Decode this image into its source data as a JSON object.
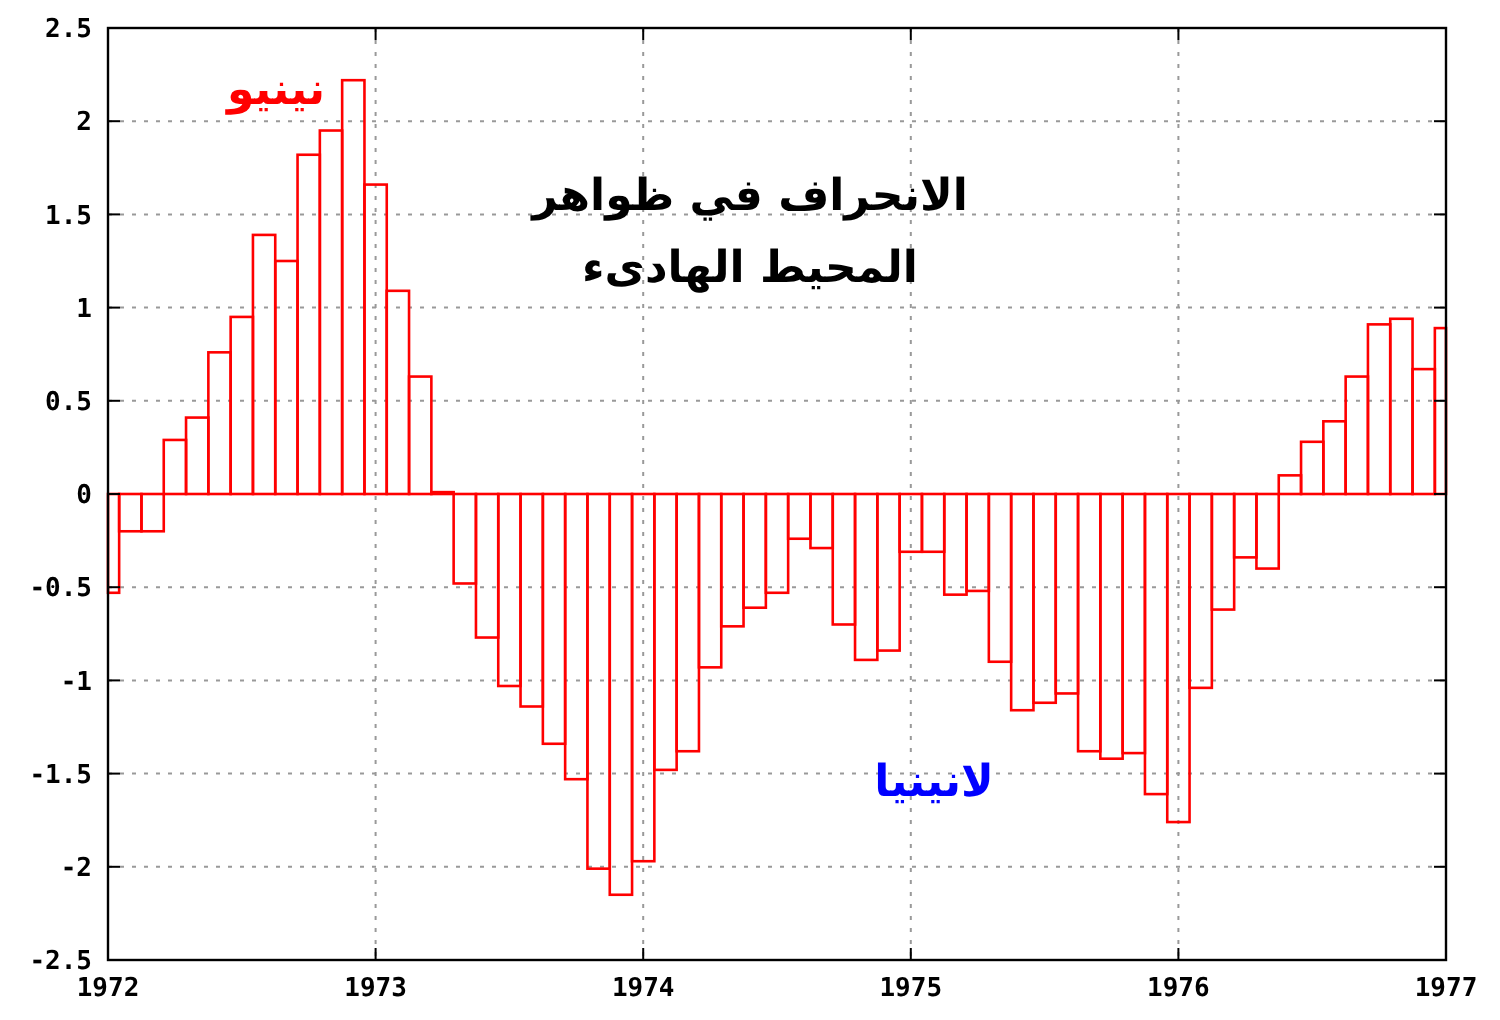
{
  "chart_data": {
    "type": "bar",
    "title": "الانحراف في ظواهر\nالمحيط الهادىء",
    "x": [
      1972,
      1972.0833,
      1972.1667,
      1972.25,
      1972.3333,
      1972.4167,
      1972.5,
      1972.5833,
      1972.6667,
      1972.75,
      1972.8333,
      1972.9167,
      1973,
      1973.0833,
      1973.1667,
      1973.25,
      1973.3333,
      1973.4167,
      1973.5,
      1973.5833,
      1973.6667,
      1973.75,
      1973.8333,
      1973.9167,
      1974,
      1974.0833,
      1974.1667,
      1974.25,
      1974.3333,
      1974.4167,
      1974.5,
      1974.5833,
      1974.6667,
      1974.75,
      1974.8333,
      1974.9167,
      1975,
      1975.0833,
      1975.1667,
      1975.25,
      1975.3333,
      1975.4167,
      1975.5,
      1975.5833,
      1975.6667,
      1975.75,
      1975.8333,
      1975.9167,
      1976,
      1976.0833,
      1976.1667,
      1976.25,
      1976.3333,
      1976.4167,
      1976.5,
      1976.5833,
      1976.6667,
      1976.75,
      1976.8333,
      1976.9167,
      1977
    ],
    "values": [
      -0.53,
      -0.2,
      -0.2,
      0.29,
      0.41,
      0.76,
      0.95,
      1.39,
      1.25,
      1.82,
      1.95,
      2.22,
      1.66,
      1.09,
      0.63,
      0.01,
      -0.48,
      -0.77,
      -1.03,
      -1.14,
      -1.34,
      -1.53,
      -2.01,
      -2.15,
      -1.97,
      -1.48,
      -1.38,
      -0.93,
      -0.71,
      -0.61,
      -0.53,
      -0.24,
      -0.29,
      -0.7,
      -0.89,
      -0.84,
      -0.31,
      -0.31,
      -0.54,
      -0.52,
      -0.9,
      -1.16,
      -1.12,
      -1.07,
      -1.38,
      -1.42,
      -1.39,
      -1.61,
      -1.76,
      -1.04,
      -0.62,
      -0.34,
      -0.4,
      0.1,
      0.28,
      0.39,
      0.63,
      0.91,
      0.94,
      0.67,
      0.89
    ],
    "color": "#ff0000",
    "xlim": [
      1972,
      1977
    ],
    "xticks": [
      1972,
      1973,
      1974,
      1975,
      1976,
      1977
    ],
    "ylim": [
      -2.5,
      2.5
    ],
    "yticks": [
      -2.5,
      -2,
      -1.5,
      -1,
      -0.5,
      0,
      0.5,
      1,
      1.5,
      2,
      2.5
    ],
    "grid": true,
    "annotations": [
      "نينيو",
      "لانينيا"
    ]
  }
}
